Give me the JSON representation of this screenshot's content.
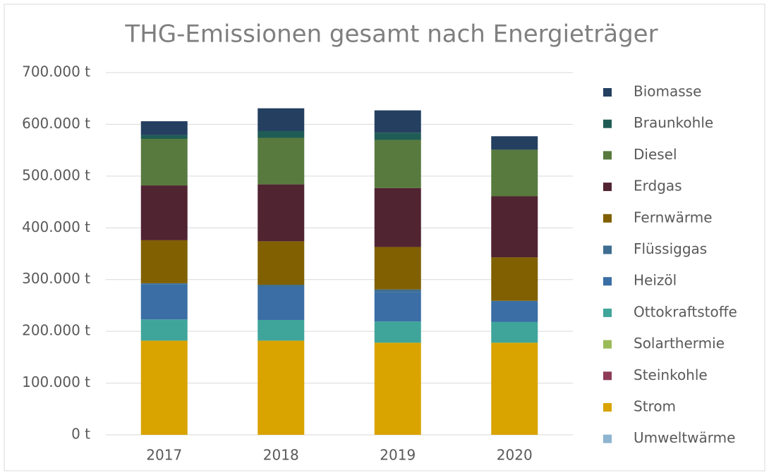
{
  "chart_data": {
    "type": "stacked_bar",
    "title": "THG-Emissionen gesamt nach Energieträger",
    "categories": [
      "2017",
      "2018",
      "2019",
      "2020"
    ],
    "series": [
      {
        "name": "Biomasse",
        "color": "#243f60",
        "values": [
          27000,
          44000,
          43000,
          26000
        ]
      },
      {
        "name": "Braunkohle",
        "color": "#1f5c55",
        "values": [
          7000,
          13000,
          14000,
          0
        ]
      },
      {
        "name": "Diesel",
        "color": "#587a3e",
        "values": [
          90000,
          90000,
          93000,
          90000
        ]
      },
      {
        "name": "Erdgas",
        "color": "#512432",
        "values": [
          106000,
          110000,
          114000,
          118000
        ]
      },
      {
        "name": "Fernwärme",
        "color": "#806000",
        "values": [
          83000,
          84000,
          82000,
          84000
        ]
      },
      {
        "name": "Flüssiggas",
        "color": "#3e6d91",
        "values": [
          2000,
          4000,
          5000,
          1000
        ]
      },
      {
        "name": "Heizöl",
        "color": "#3a6ea5",
        "values": [
          68000,
          64000,
          57000,
          40000
        ]
      },
      {
        "name": "Ottokraftstoffe",
        "color": "#3fa59a",
        "values": [
          41000,
          40000,
          41000,
          40000
        ]
      },
      {
        "name": "Solarthermie",
        "color": "#9bbb59",
        "values": [
          0,
          0,
          0,
          0
        ]
      },
      {
        "name": "Steinkohle",
        "color": "#8e3a59",
        "values": [
          0,
          0,
          0,
          0
        ]
      },
      {
        "name": "Strom",
        "color": "#d9a300",
        "values": [
          182000,
          182000,
          178000,
          178000
        ]
      },
      {
        "name": "Umweltwärme",
        "color": "#8db4d0",
        "values": [
          0,
          0,
          0,
          0
        ]
      }
    ],
    "ylim": [
      0,
      700000
    ],
    "yticks": [
      {
        "value": 0,
        "label": "0 t"
      },
      {
        "value": 100000,
        "label": "100.000 t"
      },
      {
        "value": 200000,
        "label": "200.000 t"
      },
      {
        "value": 300000,
        "label": "300.000 t"
      },
      {
        "value": 400000,
        "label": "400.000 t"
      },
      {
        "value": 500000,
        "label": "500.000 t"
      },
      {
        "value": 600000,
        "label": "600.000 t"
      },
      {
        "value": 700000,
        "label": "700.000 t"
      }
    ],
    "grid": true,
    "legend": "right"
  }
}
